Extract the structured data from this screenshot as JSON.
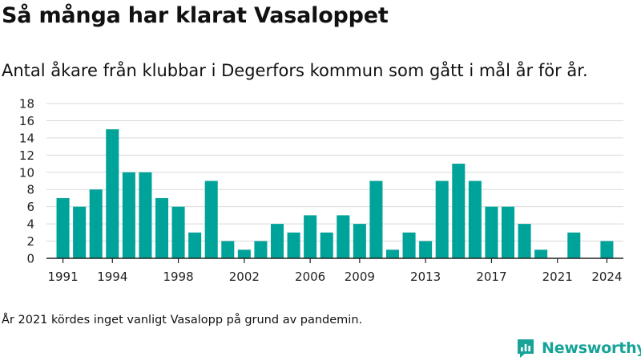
{
  "header": {
    "title": "Så många har klarat Vasaloppet",
    "subtitle": "Antal åkare från klubbar i Degerfors kommun som gått i mål år för år."
  },
  "footer": {
    "note": "År 2021 kördes inget vanligt Vasalopp på grund av pandemin.",
    "brand": "Newsworthy"
  },
  "colors": {
    "bar": "#00a39a",
    "grid": "#d9d9d9",
    "axis": "#222222",
    "brand": "#17a398"
  },
  "chart_data": {
    "type": "bar",
    "x": [
      1991,
      1992,
      1993,
      1994,
      1995,
      1996,
      1997,
      1998,
      1999,
      2000,
      2001,
      2002,
      2003,
      2004,
      2005,
      2006,
      2007,
      2008,
      2009,
      2010,
      2011,
      2012,
      2013,
      2014,
      2015,
      2016,
      2017,
      2018,
      2019,
      2020,
      2022,
      2024
    ],
    "values": [
      7,
      6,
      8,
      15,
      10,
      10,
      7,
      6,
      3,
      9,
      2,
      1,
      2,
      4,
      3,
      5,
      3,
      5,
      4,
      9,
      1,
      3,
      2,
      9,
      11,
      9,
      6,
      6,
      4,
      1,
      3,
      2
    ],
    "xticks": [
      1991,
      1994,
      1998,
      2002,
      2006,
      2009,
      2013,
      2017,
      2021,
      2024
    ],
    "yticks": [
      0,
      2,
      4,
      6,
      8,
      10,
      12,
      14,
      16,
      18
    ],
    "ylim": [
      0,
      18
    ],
    "xlim": [
      1990,
      2025
    ],
    "grid": true
  }
}
